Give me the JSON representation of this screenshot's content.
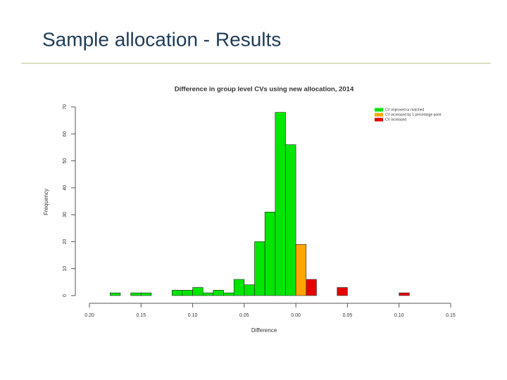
{
  "slide_title": "Sample allocation - Results",
  "chart_data": {
    "type": "histogram",
    "title": "Difference in group level CVs using new allocation, 2014",
    "xlabel": "Difference",
    "ylabel": "Frequency",
    "bins": [
      -0.18,
      -0.17,
      -0.16,
      -0.15,
      -0.14,
      -0.13,
      -0.12,
      -0.11,
      -0.1,
      -0.09,
      -0.08,
      -0.07,
      -0.06,
      -0.05,
      -0.04,
      -0.03,
      -0.02,
      -0.01,
      0.0,
      0.01,
      0.02,
      0.03,
      0.04,
      0.05,
      0.06,
      0.07,
      0.08,
      0.09,
      0.1,
      0.11
    ],
    "counts": [
      1,
      0,
      1,
      1,
      0,
      0,
      2,
      2,
      3,
      1,
      2,
      1,
      6,
      4,
      20,
      31,
      68,
      56,
      19,
      6,
      0,
      0,
      3,
      0,
      0,
      0,
      0,
      0,
      1
    ],
    "bar_colors": [
      "#00e600",
      "#00e600",
      "#00e600",
      "#00e600",
      "#00e600",
      "#00e600",
      "#00e600",
      "#00e600",
      "#00e600",
      "#00e600",
      "#00e600",
      "#00e600",
      "#00e600",
      "#00e600",
      "#00e600",
      "#00e600",
      "#00e600",
      "#00e600",
      "#ffa500",
      "#e60000",
      "#e60000",
      "#e60000",
      "#e60000",
      "#e60000",
      "#e60000",
      "#e60000",
      "#e60000",
      "#e60000",
      "#e60000"
    ],
    "legend": [
      {
        "label": "CV improved or matched",
        "color": "#00e600"
      },
      {
        "label": "CV increased by 1 percentage point",
        "color": "#ffa500"
      },
      {
        "label": "CV increased",
        "color": "#e60000"
      }
    ],
    "xlim": [
      -0.2,
      0.15
    ],
    "ylim": [
      0,
      70
    ],
    "xticks": [
      {
        "value": -0.2,
        "label": "0.20"
      },
      {
        "value": -0.15,
        "label": "0.15"
      },
      {
        "value": -0.1,
        "label": "0.10"
      },
      {
        "value": -0.05,
        "label": "0.05"
      },
      {
        "value": 0,
        "label": "0.00"
      },
      0.05,
      {
        "value": 0.1,
        "label": "0.10"
      },
      0.15
    ],
    "yticks": [
      0,
      10,
      20,
      30,
      40,
      50,
      60,
      70
    ]
  }
}
